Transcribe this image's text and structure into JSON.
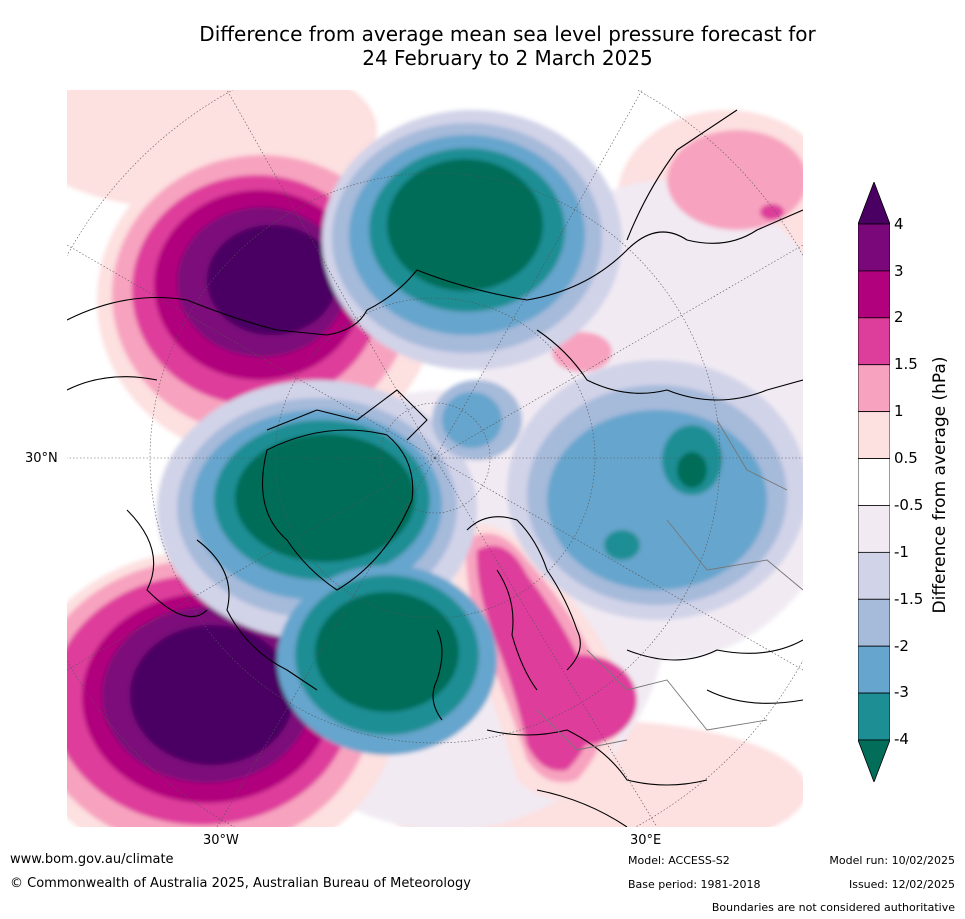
{
  "title": {
    "line1": "Difference from average mean sea level pressure forecast for",
    "line2": "24 February to 2 March 2025"
  },
  "map": {
    "lon_labels": [
      "30°W",
      "30°E"
    ],
    "lat_label": "30°N"
  },
  "colorbar": {
    "title": "Difference from average (hPa)",
    "ticks": [
      "4",
      "3",
      "2",
      "1.5",
      "1",
      "0.5",
      "-0.5",
      "-1",
      "-1.5",
      "-2",
      "-3",
      "-4"
    ],
    "colors": [
      "#4a0062",
      "#7b087a",
      "#b1017d",
      "#de3e9b",
      "#f7a3bf",
      "#fde0e0",
      "#ffffff",
      "#f1eaf3",
      "#d1d3e8",
      "#a6bada",
      "#66a5cd",
      "#1c8e94",
      "#026d59"
    ]
  },
  "footer": {
    "website": "www.bom.gov.au/climate",
    "copyright": "© Commonwealth of Australia 2025, Australian Bureau of Meteorology",
    "model": "Model: ACCESS-S2",
    "base_period": "Base period: 1981-2018",
    "model_run": "Model run: 10/02/2025",
    "issued": "Issued: 12/02/2025",
    "boundaries": "Boundaries are not considered authoritative"
  }
}
